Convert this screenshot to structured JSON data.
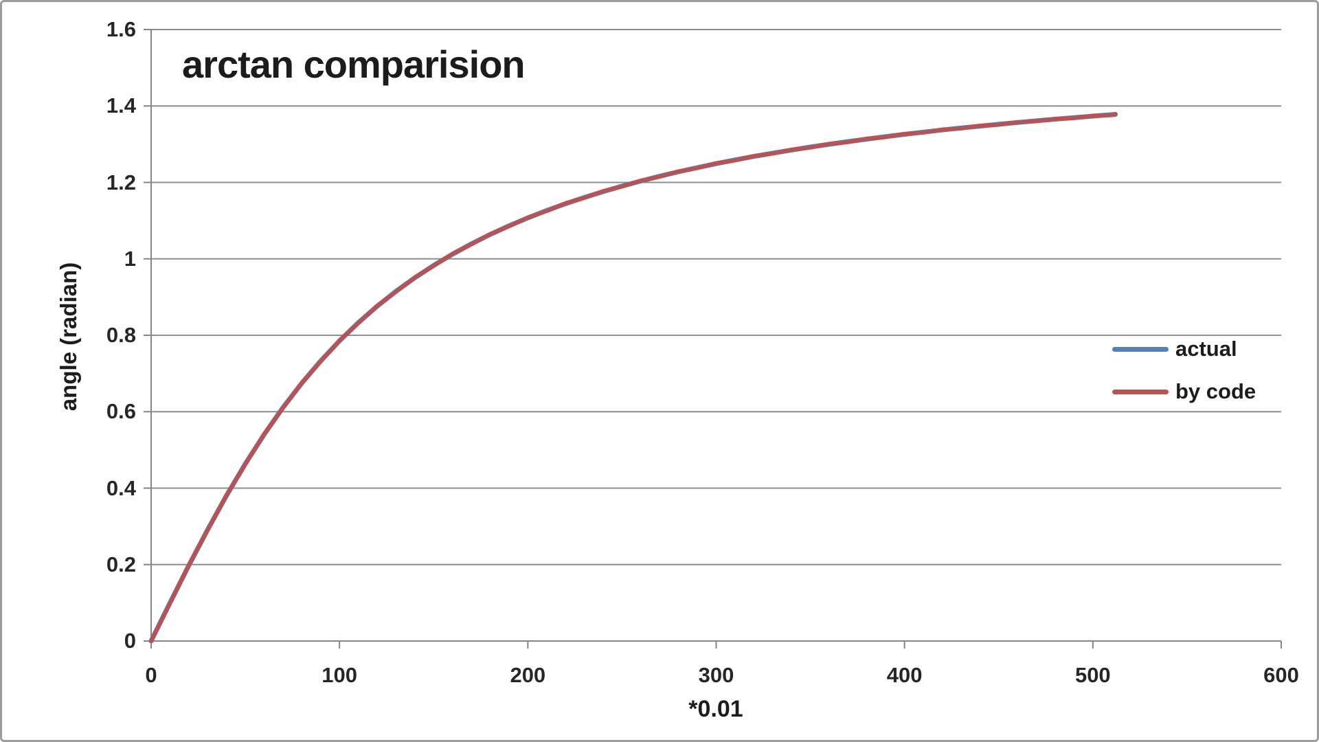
{
  "window": {
    "background": "#ffffff",
    "border_color": "#9c9c9c"
  },
  "chart_data": {
    "type": "line",
    "title": "arctan comparision",
    "xlabel": "*0.01",
    "ylabel": "angle (radian)",
    "x_range": [
      0,
      600
    ],
    "y_range": [
      0,
      1.6
    ],
    "x_ticks": [
      0,
      100,
      200,
      300,
      400,
      500,
      600
    ],
    "y_tick_values": [
      0,
      0.2,
      0.4,
      0.6,
      0.8,
      1,
      1.2,
      1.4,
      1.6
    ],
    "y_tick_labels": [
      "0",
      "0.2",
      "0.4",
      "0.6",
      "0.8",
      "1",
      "1.2",
      "1.4",
      "1.6"
    ],
    "grid": "horizontal",
    "legend_position": "inside-right",
    "colors": {
      "grid": "#8d8d8d",
      "axis": "#858585",
      "text": "#1c1c1c",
      "series_actual": "#4F81BD",
      "series_by_code": "#C0504D"
    },
    "series": [
      {
        "name": "actual",
        "color": "#4F81BD",
        "width": 7,
        "x": [
          0,
          10,
          20,
          30,
          40,
          50,
          60,
          70,
          80,
          90,
          100,
          110,
          120,
          130,
          140,
          150,
          160,
          170,
          180,
          190,
          200,
          210,
          220,
          230,
          240,
          250,
          260,
          270,
          280,
          290,
          300,
          310,
          320,
          330,
          340,
          350,
          360,
          370,
          380,
          390,
          400,
          410,
          420,
          430,
          440,
          450,
          460,
          470,
          480,
          490,
          500,
          510,
          512
        ],
        "y": [
          0.0,
          0.0997,
          0.1974,
          0.2915,
          0.3805,
          0.4636,
          0.5404,
          0.6107,
          0.6747,
          0.7328,
          0.7854,
          0.833,
          0.8761,
          0.9151,
          0.9505,
          0.9828,
          1.0122,
          1.0391,
          1.0637,
          1.0863,
          1.1071,
          1.1264,
          1.1442,
          1.1607,
          1.176,
          1.1903,
          1.2036,
          1.2161,
          1.2278,
          1.2387,
          1.249,
          1.2588,
          1.2679,
          1.2766,
          1.2847,
          1.2925,
          1.2998,
          1.3067,
          1.3133,
          1.3198,
          1.3258,
          1.3316,
          1.3371,
          1.3423,
          1.3473,
          1.3521,
          1.3567,
          1.3612,
          1.3654,
          1.3695,
          1.3734,
          1.3772,
          1.3779
        ]
      },
      {
        "name": "by code",
        "color": "#C0504D",
        "width": 5.5,
        "x": [
          0,
          10,
          20,
          30,
          40,
          50,
          60,
          70,
          80,
          90,
          100,
          110,
          120,
          130,
          140,
          150,
          160,
          170,
          180,
          190,
          200,
          210,
          220,
          230,
          240,
          250,
          260,
          270,
          280,
          290,
          300,
          310,
          320,
          330,
          340,
          350,
          360,
          370,
          380,
          390,
          400,
          410,
          420,
          430,
          440,
          450,
          460,
          470,
          480,
          490,
          500,
          510,
          512
        ],
        "y": [
          0.0,
          0.0982,
          0.1989,
          0.29,
          0.382,
          0.4621,
          0.5419,
          0.6092,
          0.6762,
          0.7313,
          0.7869,
          0.8315,
          0.8776,
          0.9136,
          0.952,
          0.9813,
          1.0137,
          1.0376,
          1.0652,
          1.0848,
          1.1086,
          1.1249,
          1.1457,
          1.1592,
          1.1775,
          1.1888,
          1.2051,
          1.2146,
          1.2293,
          1.2372,
          1.2505,
          1.2573,
          1.2694,
          1.2751,
          1.2862,
          1.291,
          1.3013,
          1.3052,
          1.3148,
          1.3183,
          1.3273,
          1.3301,
          1.3386,
          1.3408,
          1.3488,
          1.3506,
          1.3582,
          1.3597,
          1.3669,
          1.368,
          1.3749,
          1.3757,
          1.3794
        ]
      }
    ]
  }
}
